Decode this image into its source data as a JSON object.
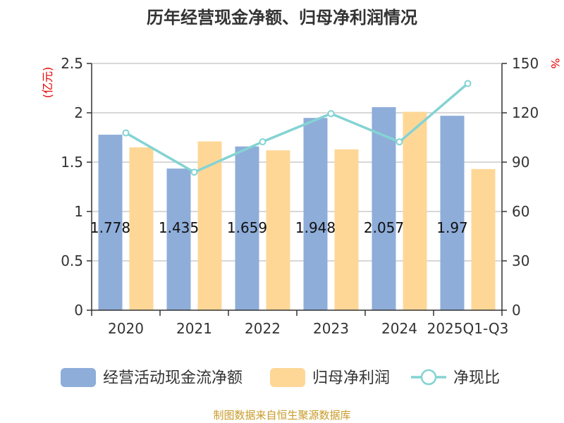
{
  "chart_data": {
    "type": "bar",
    "title": "历年经营现金净额、归母净利润情况",
    "categories": [
      "2020",
      "2021",
      "2022",
      "2023",
      "2024",
      "2025Q1-Q3"
    ],
    "series": [
      {
        "name": "经营活动现金流净额",
        "type": "bar",
        "axis": "left",
        "color": "#8eadd9",
        "values": [
          1.778,
          1.435,
          1.659,
          1.948,
          2.057,
          1.97
        ],
        "labels": [
          "1.778",
          "1.435",
          "1.659",
          "1.948",
          "2.057",
          "1.97"
        ]
      },
      {
        "name": "归母净利润",
        "type": "bar",
        "axis": "left",
        "color": "#fed797",
        "values": [
          1.65,
          1.71,
          1.62,
          1.63,
          2.01,
          1.43
        ]
      },
      {
        "name": "净现比",
        "type": "line",
        "axis": "right",
        "color": "#84d3d3",
        "values": [
          107.8,
          83.9,
          102.4,
          119.5,
          102.3,
          137.8
        ]
      }
    ],
    "y_left": {
      "unit": "(亿元)",
      "min": 0,
      "max": 2.5,
      "ticks": [
        "0",
        "0.5",
        "1",
        "1.5",
        "2",
        "2.5"
      ]
    },
    "y_right": {
      "unit": "%",
      "min": 0,
      "max": 150,
      "ticks": [
        "0",
        "30",
        "60",
        "90",
        "120",
        "150"
      ]
    },
    "grid": true,
    "legend_position": "bottom"
  },
  "source": "制图数据来自恒生聚源数据库"
}
